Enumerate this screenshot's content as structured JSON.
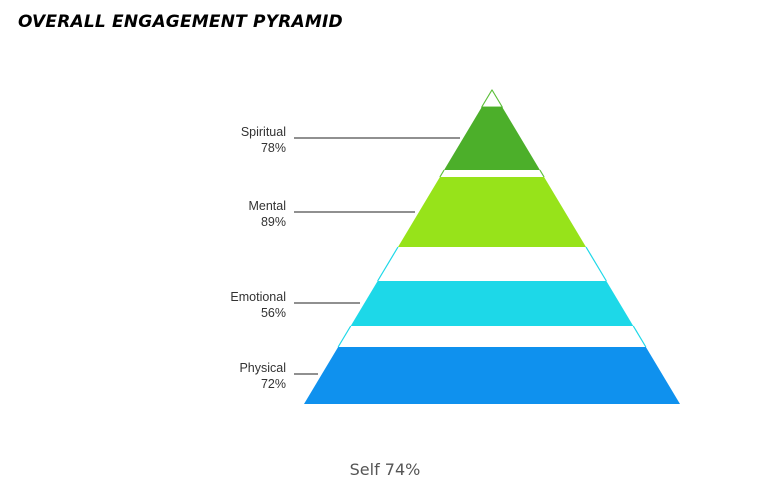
{
  "title": "OVERALL ENGAGEMENT PYRAMID",
  "footer": "Self 74%",
  "chart_data": {
    "type": "pyramid",
    "title": "OVERALL ENGAGEMENT PYRAMID",
    "levels": [
      {
        "label": "Spiritual",
        "value_label": "78%",
        "value": 78,
        "color": "#4caf2a",
        "outline": "#5cbf3a"
      },
      {
        "label": "Mental",
        "value_label": "89%",
        "value": 89,
        "color": "#97e31a",
        "outline": "#97e31a"
      },
      {
        "label": "Emotional",
        "value_label": "56%",
        "value": 56,
        "color": "#1dd8e8",
        "outline": "#1dd8e8"
      },
      {
        "label": "Physical",
        "value_label": "72%",
        "value": 72,
        "color": "#0f91ee",
        "outline": "#0f91ee"
      }
    ],
    "overall": {
      "label": "Self",
      "value": 74
    }
  }
}
